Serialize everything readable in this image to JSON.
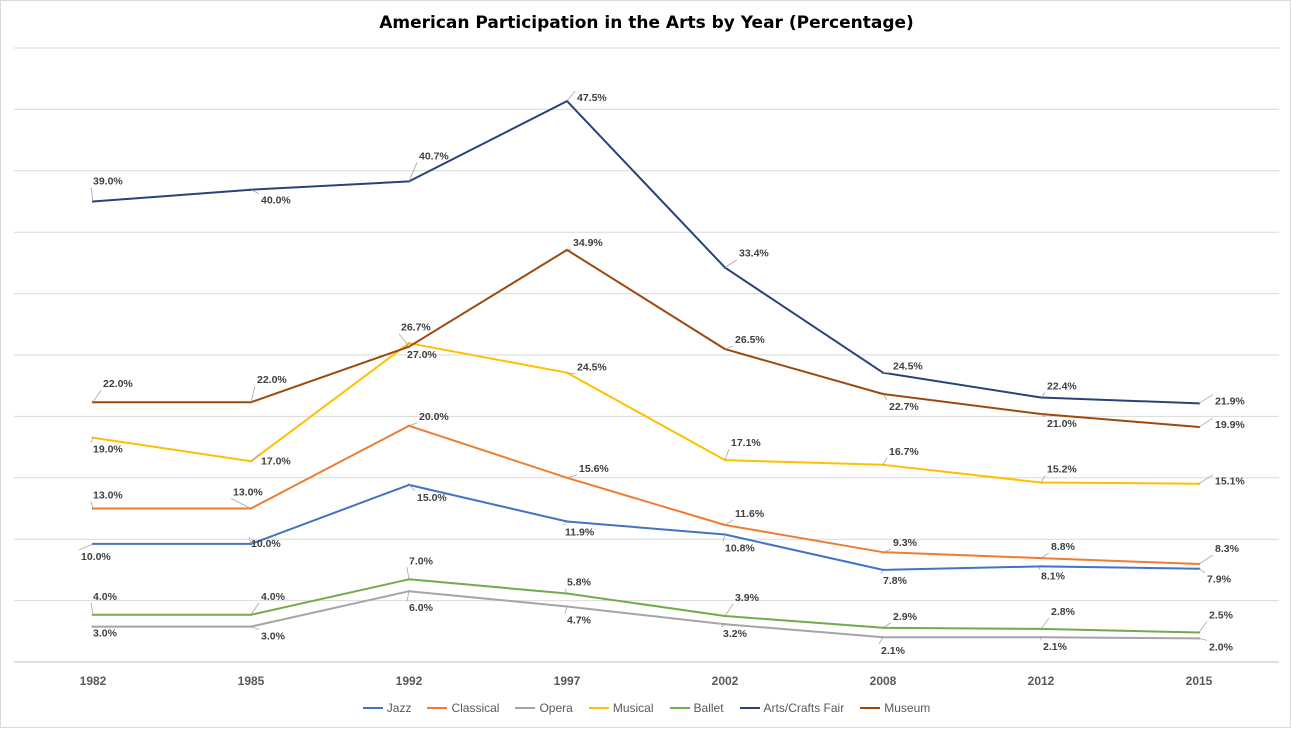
{
  "chart_data": {
    "type": "line",
    "title": "American Participation in the Arts by Year (Percentage)",
    "xlabel": "",
    "ylabel": "",
    "ylim": [
      0,
      52
    ],
    "grid": true,
    "legend_position": "bottom",
    "categories": [
      "1982",
      "1985",
      "1992",
      "1997",
      "2002",
      "2008",
      "2012",
      "2015"
    ],
    "series": [
      {
        "name": "Jazz",
        "color": "#4472c4",
        "values": [
          10.0,
          10.0,
          15.0,
          11.9,
          10.8,
          7.8,
          8.1,
          7.9
        ],
        "labels": [
          "10.0%",
          "10.0%",
          "15.0%",
          "11.9%",
          "10.8%",
          "7.8%",
          "8.1%",
          "7.9%"
        ]
      },
      {
        "name": "Classical",
        "color": "#ed7d31",
        "values": [
          13.0,
          13.0,
          20.0,
          15.6,
          11.6,
          9.3,
          8.8,
          8.3
        ],
        "labels": [
          "13.0%",
          "13.0%",
          "20.0%",
          "15.6%",
          "11.6%",
          "9.3%",
          "8.8%",
          "8.3%"
        ]
      },
      {
        "name": "Opera",
        "color": "#a5a5a5",
        "values": [
          3.0,
          3.0,
          6.0,
          4.7,
          3.2,
          2.1,
          2.1,
          2.0
        ],
        "labels": [
          "3.0%",
          "3.0%",
          "6.0%",
          "4.7%",
          "3.2%",
          "2.1%",
          "2.1%",
          "2.0%"
        ]
      },
      {
        "name": "Musical",
        "color": "#ffc000",
        "values": [
          19.0,
          17.0,
          27.0,
          24.5,
          17.1,
          16.7,
          15.2,
          15.1
        ],
        "labels": [
          "19.0%",
          "17.0%",
          "27.0%",
          "24.5%",
          "17.1%",
          "16.7%",
          "15.2%",
          "15.1%"
        ]
      },
      {
        "name": "Ballet",
        "color": "#70ad47",
        "values": [
          4.0,
          4.0,
          7.0,
          5.8,
          3.9,
          2.9,
          2.8,
          2.5
        ],
        "labels": [
          "4.0%",
          "4.0%",
          "7.0%",
          "5.8%",
          "3.9%",
          "2.9%",
          "2.8%",
          "2.5%"
        ]
      },
      {
        "name": "Arts/Crafts Fair",
        "color": "#264478",
        "values": [
          39.0,
          40.0,
          40.7,
          47.5,
          33.4,
          24.5,
          22.4,
          21.9
        ],
        "labels": [
          "39.0%",
          "40.0%",
          "40.7%",
          "47.5%",
          "33.4%",
          "24.5%",
          "22.4%",
          "21.9%"
        ]
      },
      {
        "name": "Museum",
        "color": "#9e480e",
        "values": [
          22.0,
          22.0,
          26.7,
          34.9,
          26.5,
          22.7,
          21.0,
          19.9
        ],
        "labels": [
          "22.0%",
          "22.0%",
          "26.7%",
          "34.9%",
          "26.5%",
          "22.7%",
          "21.0%",
          "19.9%"
        ]
      }
    ]
  }
}
